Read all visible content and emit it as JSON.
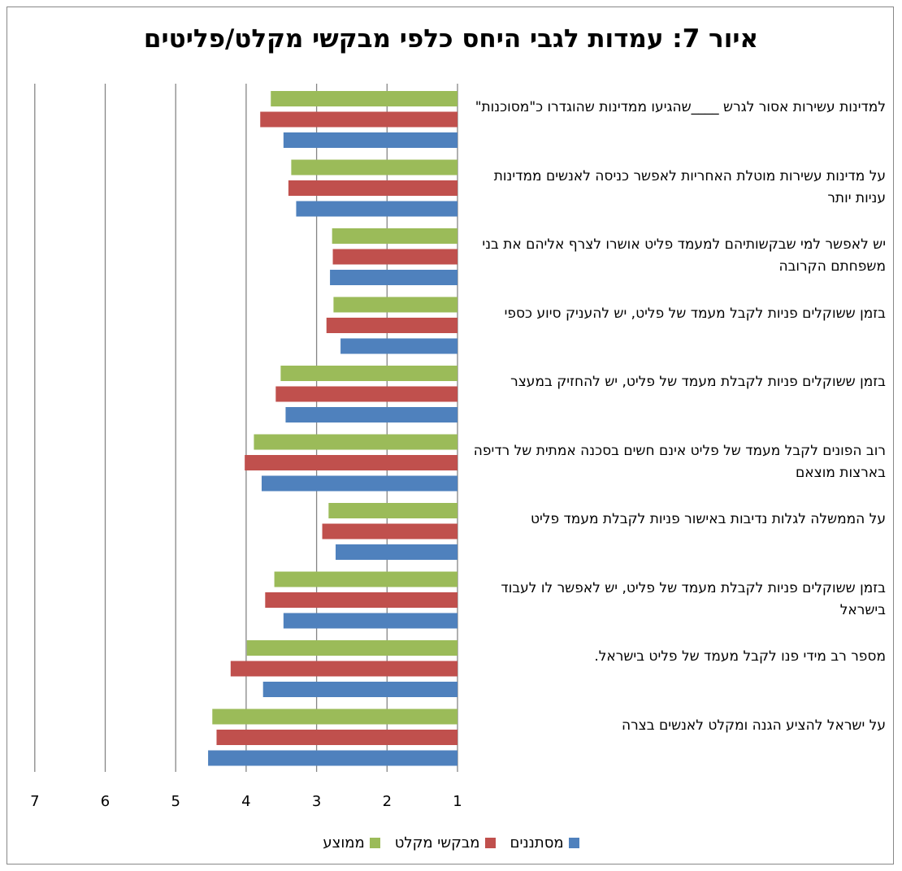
{
  "chart_data": {
    "type": "bar",
    "orientation": "horizontal",
    "title": "איור 7: עמדות לגבי היחס כלפי מבקשי מקלט/פליטים",
    "xlim": [
      1,
      7
    ],
    "x_direction": "reversed",
    "x_ticks": [
      "1",
      "2",
      "3",
      "4",
      "5",
      "6",
      "7"
    ],
    "grid": true,
    "legend_position": "bottom",
    "categories": [
      "למדינות עשירות אסור לגרש ____שהגיעו ממדינות שהוגדרו כ\"מסוכנות\"",
      "על מדינות עשירות מוטלת האחריות לאפשר כניסה לאנשים ממדינות עניות יותר",
      "יש לאפשר למי שבקשותיהם למעמד פליט אושרו לצרף אליהם את בני משפחתם הקרובה",
      "בזמן ששוקלים פניות לקבל מעמד של פליט, יש להעניק סיוע כספי",
      "בזמן ששוקלים פניות  לקבלת מעמד של פליט, יש להחזיק במעצר",
      "רוב הפונים לקבל מעמד של פליט אינם חשים בסכנה אמתית של רדיפה בארצות מוצאם",
      "על הממשלה לגלות נדיבות באישור פניות לקבלת מעמד פליט",
      "בזמן ששוקלים פניות לקבלת מעמד של פליט, יש לאפשר לו לעבוד בישראל",
      "מספר רב מידי  פנו לקבל מעמד של פליט בישראל.",
      "על ישראל להציע הגנה ומקלט לאנשים בצרה"
    ],
    "series": [
      {
        "name": "ממוצע",
        "color": "#9bbb59",
        "values": [
          3.65,
          3.36,
          2.78,
          2.76,
          3.51,
          3.89,
          2.83,
          3.6,
          3.99,
          4.48
        ]
      },
      {
        "name": "מבקשי מקלט",
        "color": "#c0504d",
        "values": [
          3.8,
          3.4,
          2.77,
          2.86,
          3.58,
          4.02,
          2.92,
          3.73,
          4.22,
          4.42
        ]
      },
      {
        "name": "מסתננים",
        "color": "#4f81bd",
        "values": [
          3.47,
          3.29,
          2.81,
          2.66,
          3.44,
          3.78,
          2.73,
          3.47,
          3.76,
          4.54
        ]
      }
    ]
  },
  "legend": {
    "items": [
      {
        "name": "מסתננים",
        "color": "#4f81bd"
      },
      {
        "name": "מבקשי מקלט",
        "color": "#c0504d"
      },
      {
        "name": "ממוצע",
        "color": "#9bbb59"
      }
    ]
  }
}
